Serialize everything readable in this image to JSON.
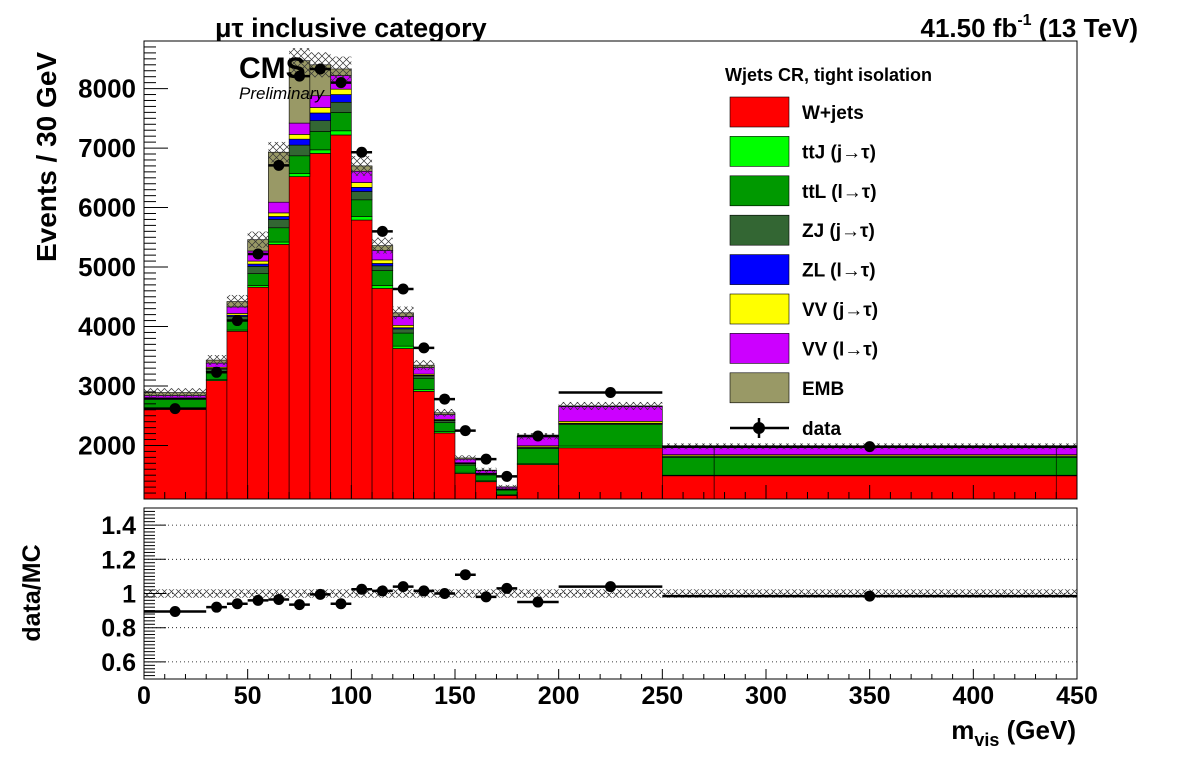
{
  "header": {
    "category_prefix": "μτ",
    "category_rest": " inclusive category",
    "lumi_value": "41.50 fb",
    "lumi_exp": "-1",
    "lumi_energy": " (13 TeV)"
  },
  "cms": {
    "label": "CMS",
    "sublabel": "Preliminary"
  },
  "legend": {
    "header": "Wjets CR, tight isolation",
    "entries": [
      {
        "key": "wjets",
        "label": "W+jets",
        "color": "#ff0000"
      },
      {
        "key": "ttj",
        "label": "ttJ (j→τ)",
        "color": "#00ff00"
      },
      {
        "key": "ttl",
        "label": "ttL (l→τ)",
        "color": "#009900"
      },
      {
        "key": "zj",
        "label": "ZJ (j→τ)",
        "color": "#336633"
      },
      {
        "key": "zl",
        "label": "ZL (l→τ)",
        "color": "#0000ff"
      },
      {
        "key": "vvj",
        "label": "VV (j→τ)",
        "color": "#ffff00"
      },
      {
        "key": "vvl",
        "label": "VV (l→τ)",
        "color": "#cc00ff"
      },
      {
        "key": "emb",
        "label": "EMB",
        "color": "#999966"
      }
    ],
    "data_label": "data"
  },
  "chart_data": [
    {
      "type": "bar",
      "subtype": "stacked-histogram",
      "ylabel": "Events / 30 GeV",
      "xlim": [
        0,
        450
      ],
      "ylim": [
        1100,
        8800
      ],
      "y_ticks": [
        2000,
        3000,
        4000,
        5000,
        6000,
        7000,
        8000
      ],
      "bin_edges": [
        0,
        30,
        40,
        50,
        60,
        70,
        80,
        90,
        100,
        110,
        120,
        130,
        140,
        150,
        160,
        170,
        180,
        200,
        250,
        275,
        440,
        450
      ],
      "series": [
        {
          "name": "W+jets",
          "values": [
            2620,
            3090,
            3920,
            4660,
            5380,
            6520,
            6910,
            7220,
            5790,
            4640,
            3630,
            2910,
            2210,
            1530,
            1390,
            1160,
            1680,
            1960,
            1490,
            1490,
            1490
          ]
        },
        {
          "name": "ttJ (j→τ)",
          "values": [
            10,
            15,
            20,
            30,
            40,
            50,
            60,
            70,
            60,
            50,
            40,
            30,
            25,
            20,
            15,
            10,
            20,
            30,
            10,
            10,
            10
          ]
        },
        {
          "name": "ttL (l→τ)",
          "values": [
            140,
            140,
            170,
            200,
            240,
            300,
            310,
            310,
            280,
            250,
            220,
            190,
            150,
            120,
            100,
            80,
            250,
            360,
            300,
            300,
            300
          ]
        },
        {
          "name": "ZJ (j→τ)",
          "values": [
            15,
            40,
            60,
            120,
            140,
            180,
            180,
            170,
            140,
            80,
            70,
            40,
            35,
            25,
            15,
            10,
            20,
            20,
            20,
            20,
            20
          ]
        },
        {
          "name": "ZL (l→τ)",
          "values": [
            5,
            10,
            20,
            40,
            50,
            100,
            130,
            130,
            70,
            40,
            20,
            10,
            5,
            5,
            5,
            5,
            5,
            5,
            5,
            5,
            5
          ]
        },
        {
          "name": "VV (j→τ)",
          "values": [
            10,
            20,
            30,
            50,
            60,
            80,
            90,
            90,
            80,
            60,
            40,
            20,
            15,
            10,
            10,
            5,
            20,
            30,
            20,
            20,
            20
          ]
        },
        {
          "name": "VV (l→τ)",
          "values": [
            40,
            70,
            110,
            170,
            180,
            190,
            200,
            230,
            190,
            160,
            150,
            110,
            80,
            60,
            40,
            30,
            150,
            250,
            120,
            120,
            120
          ]
        },
        {
          "name": "EMB",
          "values": [
            50,
            50,
            90,
            190,
            840,
            1050,
            520,
            110,
            90,
            80,
            60,
            40,
            30,
            20,
            10,
            5,
            10,
            10,
            20,
            20,
            20
          ]
        }
      ],
      "unc_rel": 0.025,
      "data_points": {
        "name": "data",
        "x": [
          15,
          35,
          45,
          55,
          65,
          75,
          85,
          95,
          105,
          115,
          125,
          135,
          145,
          155,
          165,
          175,
          190,
          225,
          350
        ],
        "xerr": [
          15,
          5,
          5,
          5,
          5,
          5,
          5,
          5,
          5,
          5,
          5,
          5,
          5,
          5,
          5,
          5,
          10,
          25,
          100
        ],
        "y": [
          2620,
          3230,
          4100,
          5220,
          6710,
          8210,
          8330,
          8100,
          6930,
          5600,
          4630,
          3640,
          2780,
          2250,
          1770,
          1480,
          2160,
          2890,
          1980
        ]
      }
    },
    {
      "type": "scatter",
      "ylabel": "data/MC",
      "xlabel_main": "m",
      "xlabel_sub": "vis",
      "xlabel_rest": " (GeV)",
      "xlim": [
        0,
        450
      ],
      "ylim": [
        0.5,
        1.5
      ],
      "x_ticks": [
        0,
        50,
        100,
        150,
        200,
        250,
        300,
        350,
        400,
        450
      ],
      "y_ticks": [
        0.6,
        0.8,
        1,
        1.2,
        1.4
      ],
      "grid": true,
      "x": [
        15,
        35,
        45,
        55,
        65,
        75,
        85,
        95,
        105,
        115,
        125,
        135,
        145,
        155,
        165,
        175,
        190,
        225,
        350
      ],
      "xerr": [
        15,
        5,
        5,
        5,
        5,
        5,
        5,
        5,
        5,
        5,
        5,
        5,
        5,
        5,
        5,
        5,
        10,
        25,
        100
      ],
      "y": [
        0.895,
        0.92,
        0.94,
        0.96,
        0.965,
        0.935,
        0.995,
        0.94,
        1.025,
        1.015,
        1.04,
        1.015,
        1.0,
        1.11,
        0.98,
        1.03,
        0.95,
        1.04,
        0.985
      ]
    }
  ]
}
